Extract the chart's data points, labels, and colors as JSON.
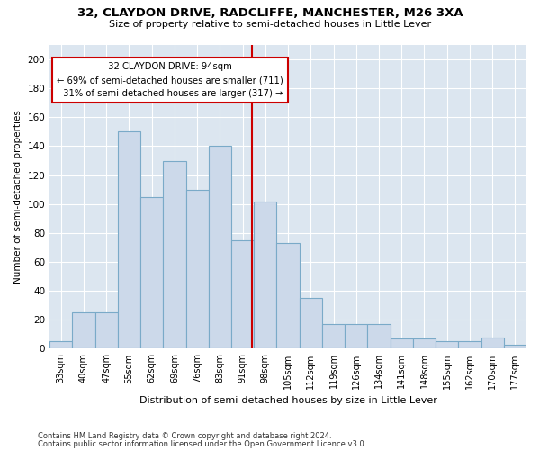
{
  "title1": "32, CLAYDON DRIVE, RADCLIFFE, MANCHESTER, M26 3XA",
  "title2": "Size of property relative to semi-detached houses in Little Lever",
  "xlabel": "Distribution of semi-detached houses by size in Little Lever",
  "ylabel": "Number of semi-detached properties",
  "footnote1": "Contains HM Land Registry data © Crown copyright and database right 2024.",
  "footnote2": "Contains public sector information licensed under the Open Government Licence v3.0.",
  "bar_color": "#ccd9ea",
  "bar_edge_color": "#7aaac8",
  "annotation_box_color": "#cc0000",
  "vline_color": "#cc0000",
  "background_color": "#dce6f0",
  "categories": [
    "33sqm",
    "40sqm",
    "47sqm",
    "55sqm",
    "62sqm",
    "69sqm",
    "76sqm",
    "83sqm",
    "91sqm",
    "98sqm",
    "105sqm",
    "112sqm",
    "119sqm",
    "126sqm",
    "134sqm",
    "141sqm",
    "148sqm",
    "155sqm",
    "162sqm",
    "170sqm",
    "177sqm"
  ],
  "values": [
    5,
    25,
    25,
    150,
    105,
    130,
    110,
    140,
    75,
    102,
    73,
    35,
    17,
    17,
    17,
    7,
    7,
    5,
    5,
    8,
    3
  ],
  "ylim": [
    0,
    210
  ],
  "yticks": [
    0,
    20,
    40,
    60,
    80,
    100,
    120,
    140,
    160,
    180,
    200
  ],
  "property_label": "32 CLAYDON DRIVE: 94sqm",
  "smaller_pct": "69%",
  "smaller_count": 711,
  "larger_pct": "31%",
  "larger_count": 317,
  "vline_position": 8.43
}
